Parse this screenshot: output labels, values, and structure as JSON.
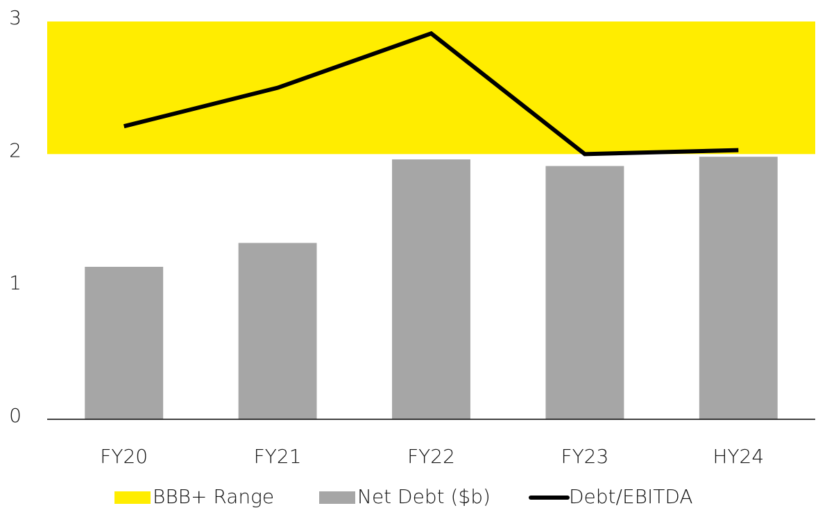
{
  "chart_data": {
    "type": "bar",
    "categories": [
      "FY20",
      "FY21",
      "FY22",
      "FY23",
      "HY24"
    ],
    "series": [
      {
        "name": "BBB+ Range",
        "type": "band",
        "color": "#ffed00",
        "range": [
          2,
          3
        ]
      },
      {
        "name": "Net Debt ($b)",
        "type": "bar",
        "color": "#a6a6a6",
        "values": [
          1.15,
          1.33,
          1.96,
          1.91,
          1.98
        ]
      },
      {
        "name": "Debt/EBITDA",
        "type": "line",
        "color": "#000000",
        "values": [
          2.21,
          2.5,
          2.91,
          2.0,
          2.03
        ]
      }
    ],
    "ylim": [
      0,
      3
    ],
    "yticks": [
      0,
      1,
      2,
      3
    ],
    "grid": false
  }
}
